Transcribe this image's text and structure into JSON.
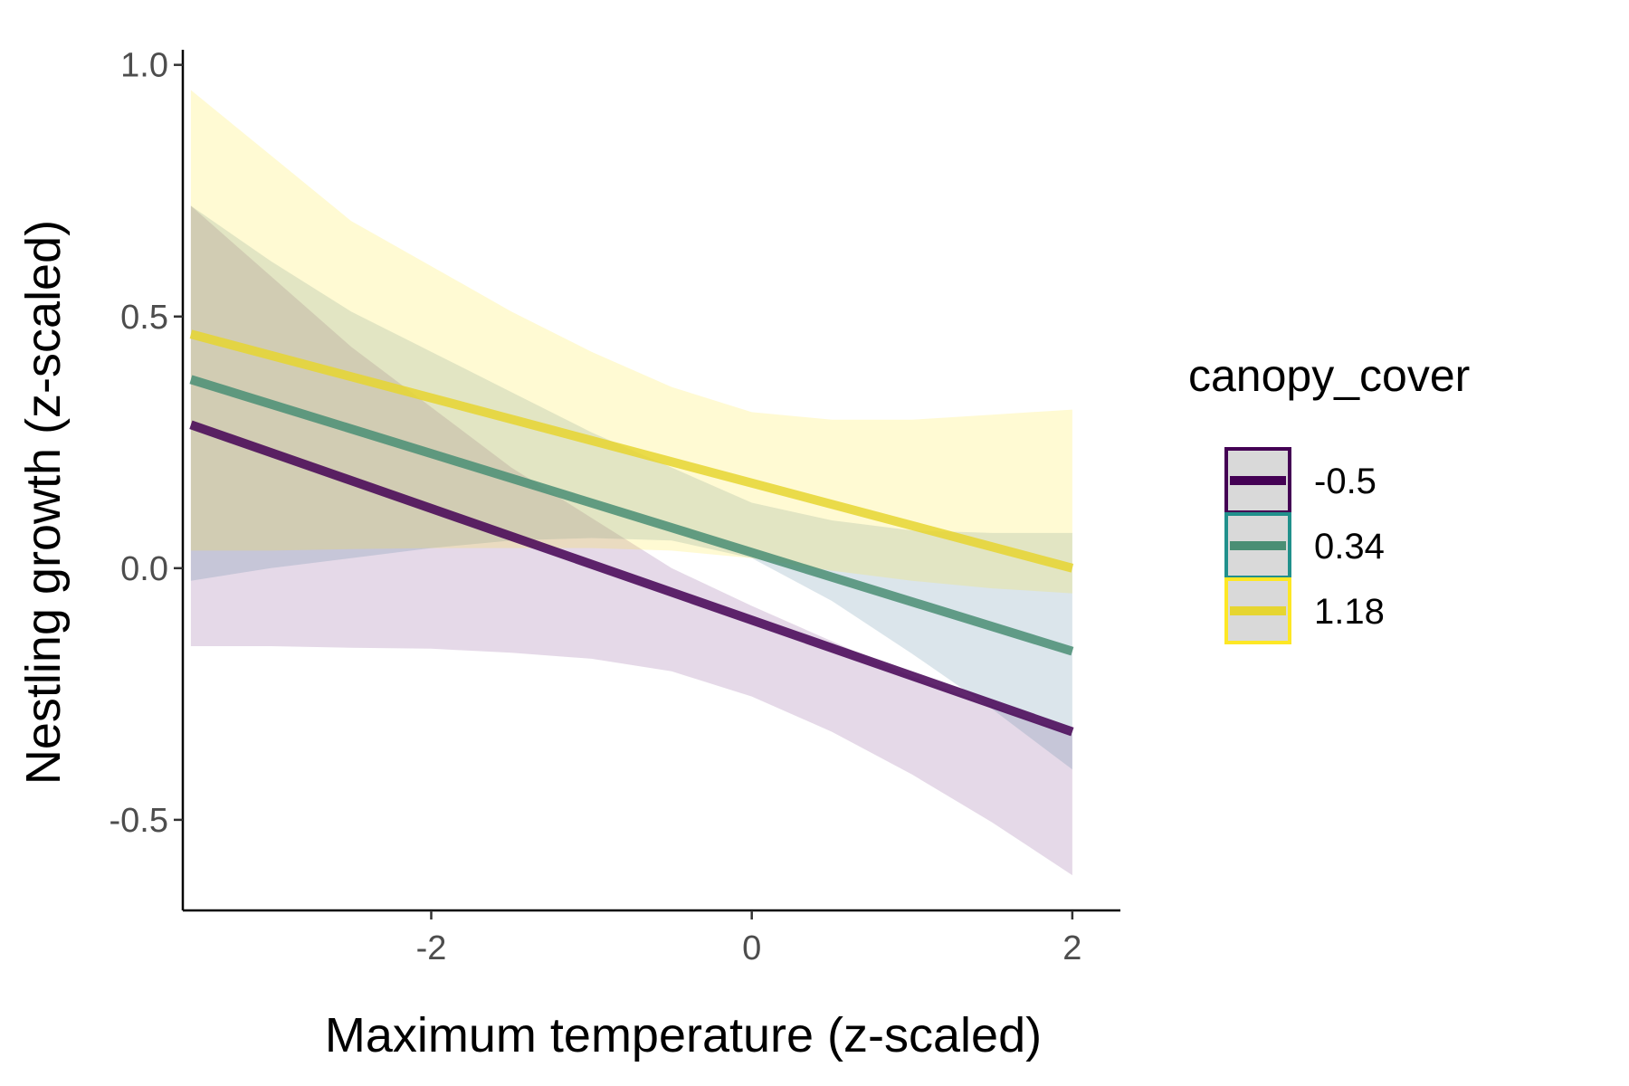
{
  "chart_data": {
    "type": "line",
    "xlabel": "Maximum temperature (z-scaled)",
    "ylabel": "Nestling growth (z-scaled)",
    "xlim": [
      -3.55,
      2.3
    ],
    "ylim": [
      -0.68,
      1.03
    ],
    "x_ticks": [
      -2,
      0,
      2
    ],
    "x_tick_labels": [
      "-2",
      "0",
      "2"
    ],
    "y_ticks": [
      -0.5,
      0.0,
      0.5,
      1.0
    ],
    "y_tick_labels": [
      "-0.5",
      "0.0",
      "0.5",
      "1.0"
    ],
    "grid": false,
    "legend": {
      "title": "canopy_cover",
      "position": "right"
    },
    "series": [
      {
        "name": "-0.5",
        "color": "#440154",
        "line_color": "#440154",
        "fill": "#7b3f8c",
        "x": [
          -3.5,
          2.0
        ],
        "y": [
          0.285,
          -0.325
        ],
        "band": {
          "x": [
            -3.5,
            -3.0,
            -2.5,
            -2.0,
            -1.5,
            -1.0,
            -0.5,
            0.0,
            0.5,
            1.0,
            1.5,
            2.0
          ],
          "lower": [
            -0.155,
            -0.155,
            -0.158,
            -0.16,
            -0.168,
            -0.18,
            -0.205,
            -0.255,
            -0.325,
            -0.41,
            -0.505,
            -0.61
          ],
          "upper": [
            0.72,
            0.58,
            0.44,
            0.32,
            0.2,
            0.1,
            0.0,
            -0.075,
            -0.145,
            -0.215,
            -0.275,
            -0.33
          ]
        }
      },
      {
        "name": "0.34",
        "color": "#21908c",
        "line_color": "#4a8e74",
        "fill": "#4a7f9b",
        "x": [
          -3.5,
          2.0
        ],
        "y": [
          0.375,
          -0.165
        ],
        "band": {
          "x": [
            -3.5,
            -3.0,
            -2.5,
            -2.0,
            -1.5,
            -1.0,
            -0.5,
            0.0,
            0.5,
            1.0,
            1.5,
            2.0
          ],
          "lower": [
            -0.025,
            0.0,
            0.02,
            0.04,
            0.055,
            0.06,
            0.055,
            0.02,
            -0.065,
            -0.17,
            -0.28,
            -0.4
          ],
          "upper": [
            0.72,
            0.61,
            0.51,
            0.43,
            0.35,
            0.27,
            0.2,
            0.13,
            0.095,
            0.075,
            0.07,
            0.07
          ]
        }
      },
      {
        "name": "1.18",
        "color": "#fde725",
        "line_color": "#e6d530",
        "fill": "#fde725",
        "x": [
          -3.5,
          2.0
        ],
        "y": [
          0.465,
          0.0
        ],
        "band": {
          "x": [
            -3.5,
            -3.0,
            -2.5,
            -2.0,
            -1.5,
            -1.0,
            -0.5,
            0.0,
            0.5,
            1.0,
            1.5,
            2.0
          ],
          "lower": [
            0.035,
            0.035,
            0.038,
            0.04,
            0.04,
            0.04,
            0.035,
            0.02,
            -0.005,
            -0.025,
            -0.04,
            -0.05
          ],
          "upper": [
            0.95,
            0.82,
            0.69,
            0.6,
            0.51,
            0.43,
            0.36,
            0.31,
            0.295,
            0.295,
            0.305,
            0.315
          ]
        }
      }
    ]
  }
}
